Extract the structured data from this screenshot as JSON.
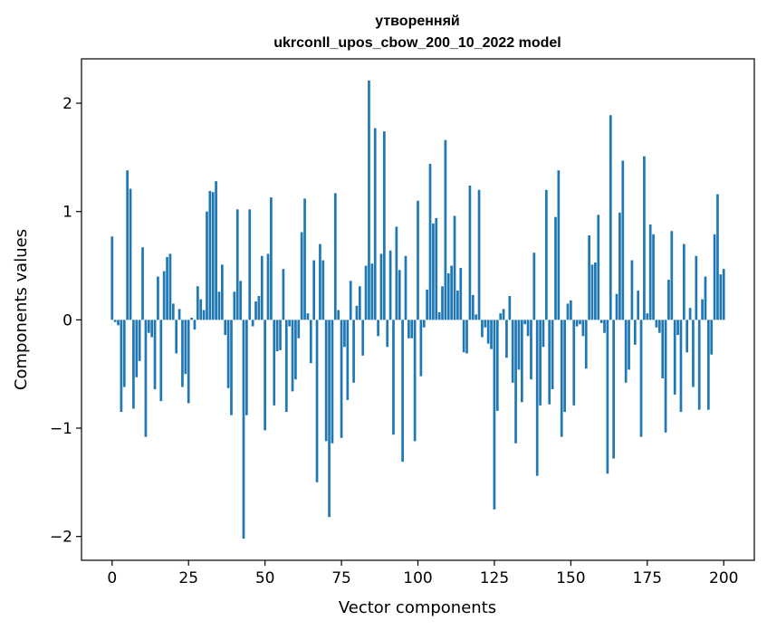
{
  "chart_data": {
    "type": "bar",
    "title_lines": [
      "утворенняй",
      "ukrconll_upos_cbow_200_10_2022 model"
    ],
    "xlabel": "Vector components",
    "ylabel": "Components values",
    "xlim": [
      -10,
      210
    ],
    "ylim": [
      -2.22,
      2.41
    ],
    "xticks": [
      0,
      25,
      50,
      75,
      100,
      125,
      150,
      175,
      200
    ],
    "xtick_labels": [
      "0",
      "25",
      "50",
      "75",
      "100",
      "125",
      "150",
      "175",
      "200"
    ],
    "yticks": [
      -2,
      -1,
      0,
      1,
      2
    ],
    "ytick_labels": [
      "−2",
      "−1",
      "0",
      "1",
      "2"
    ],
    "grid": false,
    "legend": "none",
    "bar_color": "#1f77b4",
    "values": [
      0.77,
      -0.02,
      -0.05,
      -0.85,
      -0.62,
      1.38,
      1.21,
      -0.82,
      -0.53,
      -0.38,
      0.67,
      -1.08,
      -0.12,
      -0.16,
      -0.64,
      0.4,
      -0.75,
      0.45,
      0.58,
      0.61,
      0.15,
      -0.31,
      0.1,
      -0.62,
      -0.5,
      -0.77,
      0.02,
      -0.09,
      0.31,
      0.19,
      0.09,
      1.0,
      1.19,
      1.18,
      1.28,
      0.26,
      0.51,
      -0.14,
      -0.63,
      -0.88,
      0.26,
      1.02,
      0.36,
      -2.02,
      -0.88,
      1.02,
      -0.06,
      0.17,
      0.22,
      0.59,
      -1.02,
      0.61,
      1.13,
      -0.79,
      -0.29,
      -0.28,
      0.47,
      -0.85,
      -0.06,
      -0.66,
      -0.55,
      -0.17,
      0.81,
      1.12,
      0.06,
      -0.4,
      0.55,
      -1.5,
      0.7,
      0.55,
      -1.12,
      -1.82,
      -1.14,
      1.17,
      0.09,
      -1.09,
      -0.25,
      -0.74,
      0.36,
      -0.58,
      0.13,
      0.31,
      -0.33,
      0.5,
      2.21,
      0.52,
      1.77,
      -0.15,
      0.61,
      1.74,
      -0.25,
      0.64,
      -1.06,
      0.86,
      0.46,
      -1.31,
      0.59,
      -0.17,
      -0.17,
      -1.12,
      1.1,
      -0.52,
      -0.07,
      0.28,
      1.44,
      0.89,
      0.94,
      0.07,
      0.31,
      1.66,
      0.43,
      0.5,
      0.96,
      0.27,
      0.48,
      -0.3,
      -0.31,
      1.24,
      0.23,
      0.05,
      1.2,
      -0.16,
      -0.07,
      -0.22,
      -0.27,
      -1.75,
      -0.84,
      0.06,
      0.1,
      -0.35,
      0.22,
      -0.58,
      -1.14,
      -0.46,
      -0.76,
      -0.04,
      -0.15,
      -0.55,
      0.62,
      -1.44,
      -0.79,
      -0.25,
      1.2,
      -0.78,
      -0.64,
      0.95,
      1.38,
      -1.08,
      -0.85,
      0.15,
      0.18,
      -0.79,
      -0.06,
      -0.04,
      -0.15,
      -0.45,
      0.78,
      0.51,
      0.53,
      0.97,
      -0.03,
      -0.12,
      -1.42,
      1.89,
      -1.28,
      0.24,
      0.99,
      1.47,
      -0.58,
      -0.46,
      0.55,
      -0.23,
      0.27,
      -1.08,
      1.51,
      0.06,
      0.88,
      0.79,
      -0.07,
      -0.12,
      -0.54,
      -1.04,
      0.37,
      0.82,
      -0.69,
      -0.14,
      -0.85,
      0.7,
      -0.3,
      0.11,
      -0.62,
      0.59,
      -0.83,
      0.19,
      0.4,
      -0.83,
      -0.32,
      0.79,
      1.16,
      0.42,
      0.47
    ]
  }
}
